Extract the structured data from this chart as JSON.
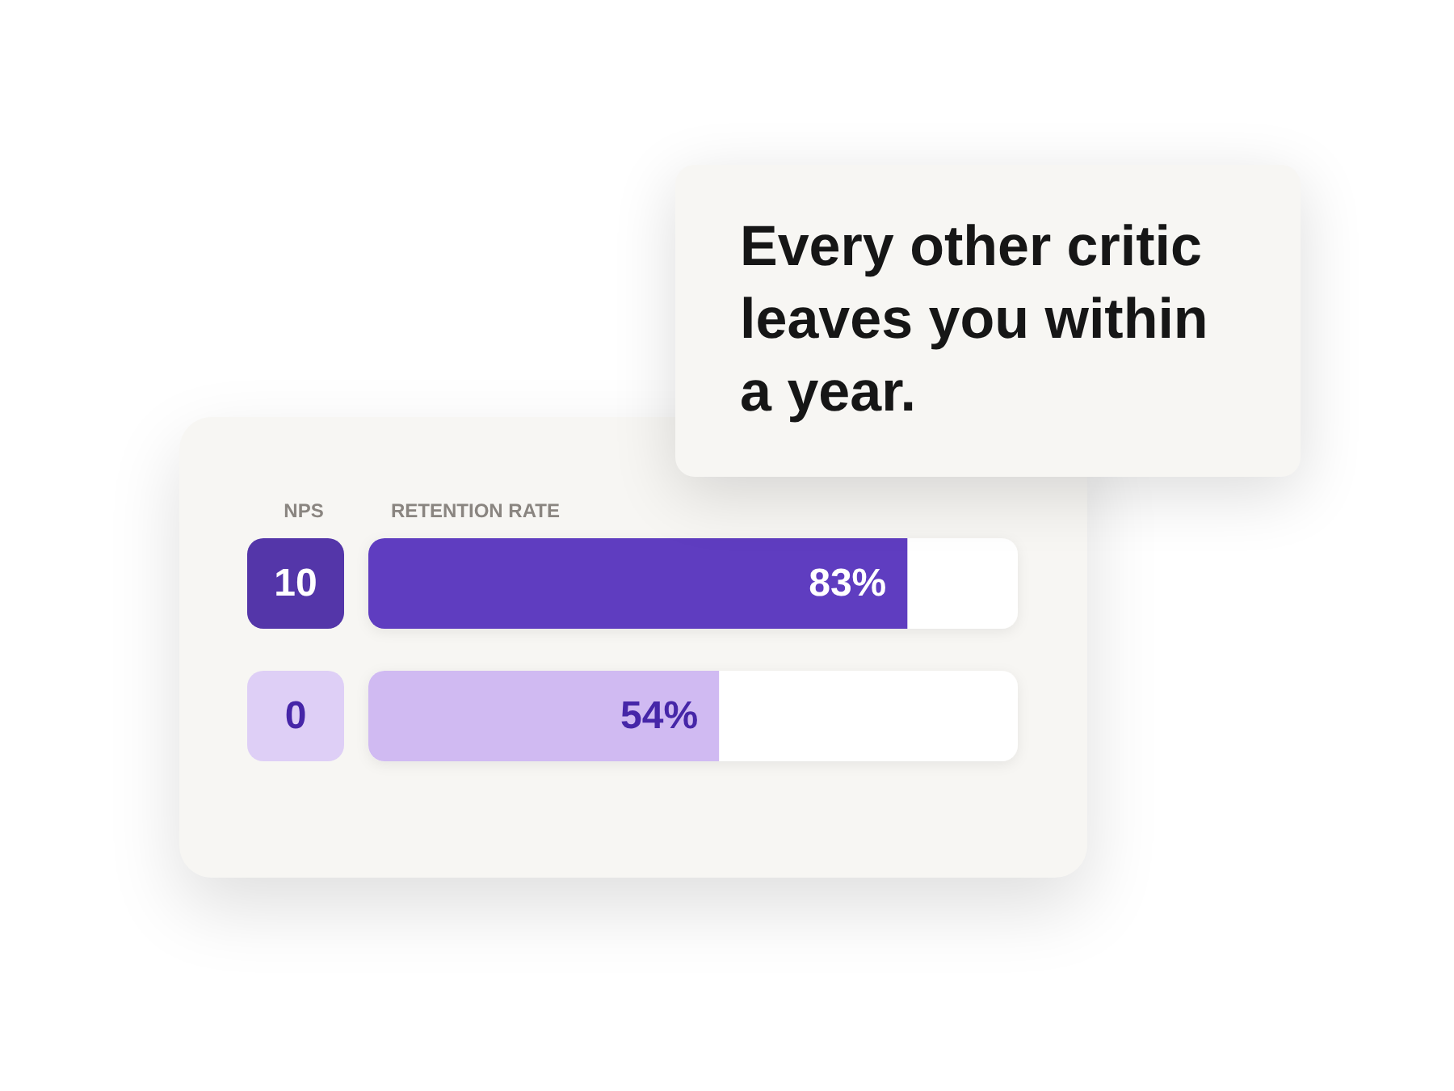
{
  "chart_data": {
    "type": "bar",
    "orientation": "horizontal",
    "title": "Every other critic leaves you within a year.",
    "xlabel": "RETENTION RATE",
    "ylabel": "NPS",
    "categories": [
      "10",
      "0"
    ],
    "values": [
      83,
      54
    ],
    "colors": [
      "#5f3dc0",
      "#d0baf2"
    ],
    "value_labels": [
      "83%",
      "54%"
    ],
    "xlim": [
      0,
      100
    ],
    "tick_labels": "y"
  }
}
